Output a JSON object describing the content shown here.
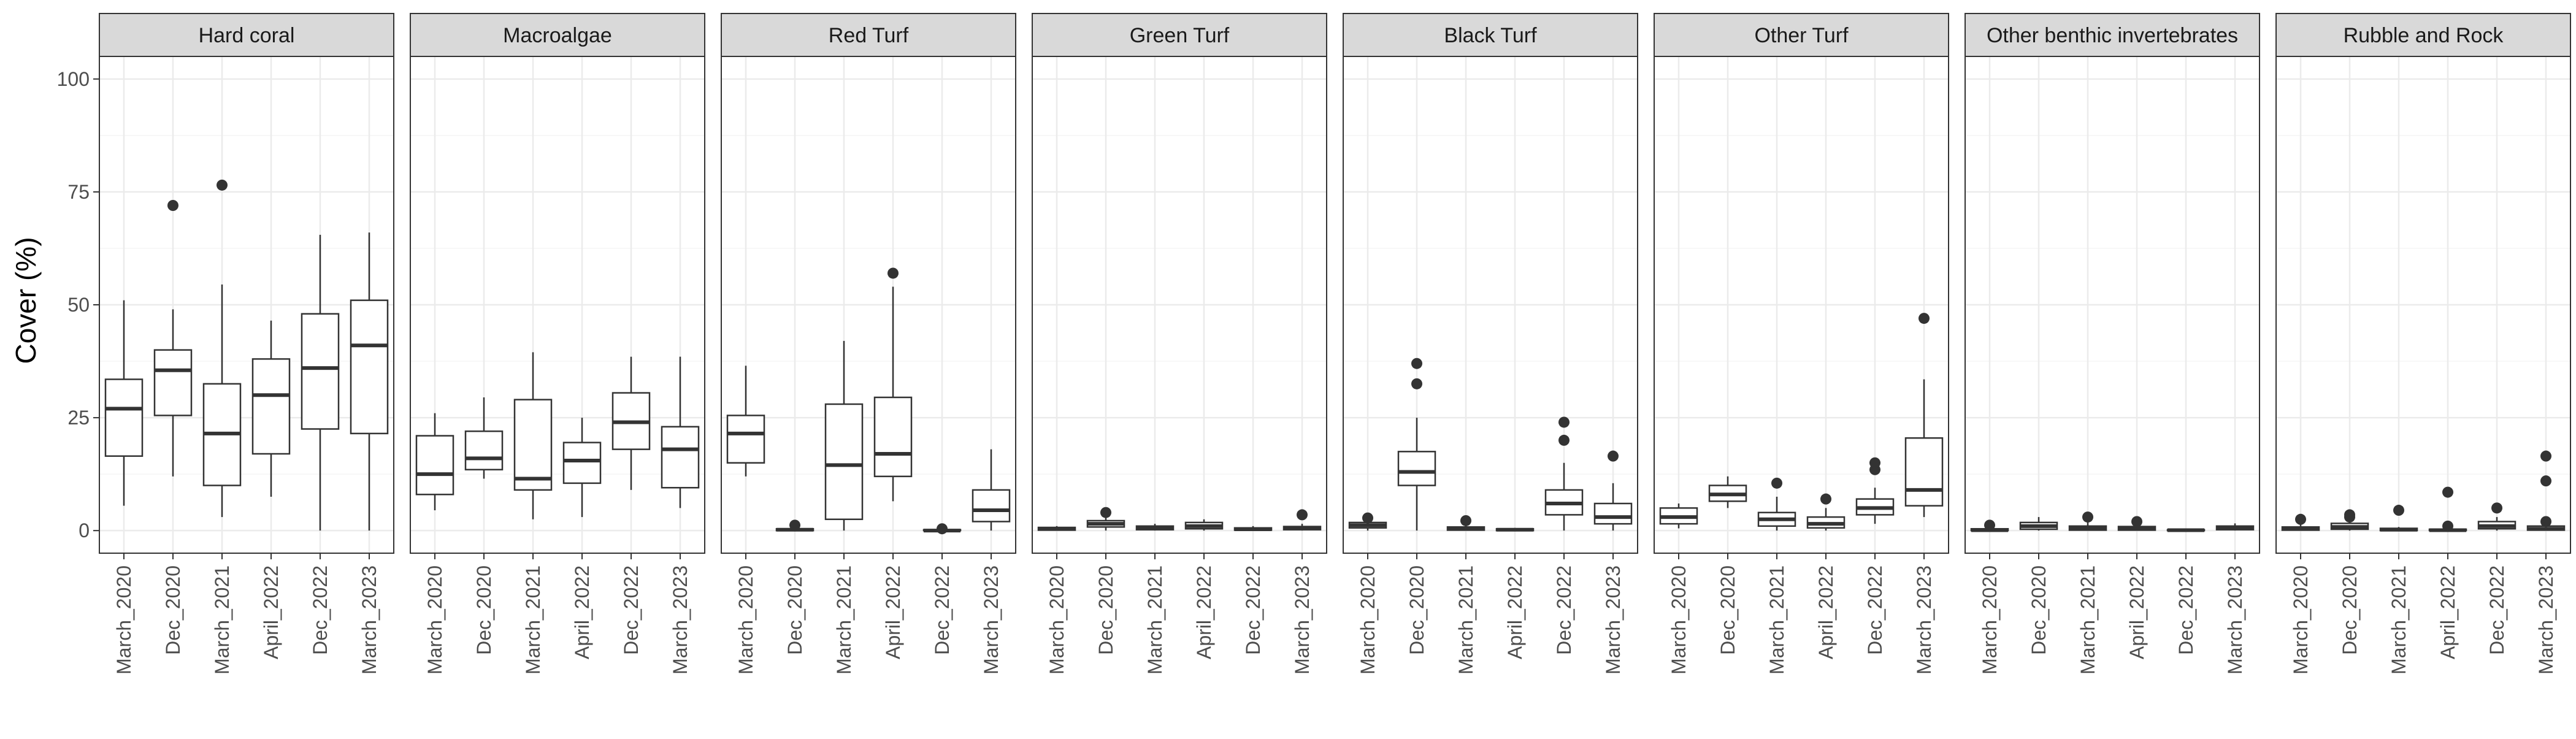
{
  "chart_data": {
    "type": "boxplot",
    "ylabel": "Cover (%)",
    "xlabel": "",
    "ylim": [
      0,
      100
    ],
    "yticks": [
      0,
      25,
      50,
      75,
      100
    ],
    "grid": true,
    "categories": [
      "March_2020",
      "Dec_2020",
      "March_2021",
      "April_2022",
      "Dec_2022",
      "March_2023"
    ],
    "colors": {
      "box_fill": "#ffffff",
      "stroke": "#333333",
      "strip_fill": "#d9d9d9",
      "grid_major": "#ebebeb",
      "grid_minor": "#f5f5f5",
      "panel_border": "#333333"
    },
    "panels": [
      {
        "title": "Hard coral",
        "boxes": [
          {
            "category": "March_2020",
            "lower": 5.5,
            "q1": 16.5,
            "median": 27,
            "q3": 33.5,
            "upper": 51,
            "outliers": []
          },
          {
            "category": "Dec_2020",
            "lower": 12,
            "q1": 25.5,
            "median": 35.5,
            "q3": 40,
            "upper": 49,
            "outliers": [
              72
            ]
          },
          {
            "category": "March_2021",
            "lower": 3,
            "q1": 10,
            "median": 21.5,
            "q3": 32.5,
            "upper": 54.5,
            "outliers": [
              76.5
            ]
          },
          {
            "category": "April_2022",
            "lower": 7.5,
            "q1": 17,
            "median": 30,
            "q3": 38,
            "upper": 46.5,
            "outliers": []
          },
          {
            "category": "Dec_2022",
            "lower": 0,
            "q1": 22.5,
            "median": 36,
            "q3": 48,
            "upper": 65.5,
            "outliers": []
          },
          {
            "category": "March_2023",
            "lower": 0,
            "q1": 21.5,
            "median": 41,
            "q3": 51,
            "upper": 66,
            "outliers": []
          }
        ]
      },
      {
        "title": "Macroalgae",
        "boxes": [
          {
            "category": "March_2020",
            "lower": 4.5,
            "q1": 8,
            "median": 12.5,
            "q3": 21,
            "upper": 26,
            "outliers": []
          },
          {
            "category": "Dec_2020",
            "lower": 11.5,
            "q1": 13.5,
            "median": 16,
            "q3": 22,
            "upper": 29.5,
            "outliers": []
          },
          {
            "category": "March_2021",
            "lower": 2.5,
            "q1": 9,
            "median": 11.5,
            "q3": 29,
            "upper": 39.5,
            "outliers": []
          },
          {
            "category": "April_2022",
            "lower": 3,
            "q1": 10.5,
            "median": 15.5,
            "q3": 19.5,
            "upper": 25,
            "outliers": []
          },
          {
            "category": "Dec_2022",
            "lower": 9,
            "q1": 18,
            "median": 24,
            "q3": 30.5,
            "upper": 38.5,
            "outliers": []
          },
          {
            "category": "March_2023",
            "lower": 5,
            "q1": 9.5,
            "median": 18,
            "q3": 23,
            "upper": 38.5,
            "outliers": []
          }
        ]
      },
      {
        "title": "Red Turf",
        "boxes": [
          {
            "category": "March_2020",
            "lower": 12,
            "q1": 15,
            "median": 21.5,
            "q3": 25.5,
            "upper": 36.5,
            "outliers": []
          },
          {
            "category": "Dec_2020",
            "lower": 0,
            "q1": 0,
            "median": 0.2,
            "q3": 0.4,
            "upper": 0.6,
            "outliers": [
              1.2
            ]
          },
          {
            "category": "March_2021",
            "lower": 0,
            "q1": 2.5,
            "median": 14.5,
            "q3": 28,
            "upper": 42,
            "outliers": []
          },
          {
            "category": "April_2022",
            "lower": 6.5,
            "q1": 12,
            "median": 17,
            "q3": 29.5,
            "upper": 54,
            "outliers": [
              57
            ]
          },
          {
            "category": "Dec_2022",
            "lower": 0,
            "q1": 0,
            "median": 0,
            "q3": 0.2,
            "upper": 0.4,
            "outliers": [
              0.4
            ]
          },
          {
            "category": "March_2023",
            "lower": 0,
            "q1": 2,
            "median": 4.5,
            "q3": 9,
            "upper": 18,
            "outliers": []
          }
        ]
      },
      {
        "title": "Green Turf",
        "boxes": [
          {
            "category": "March_2020",
            "lower": 0,
            "q1": 0.1,
            "median": 0.4,
            "q3": 0.7,
            "upper": 1,
            "outliers": []
          },
          {
            "category": "Dec_2020",
            "lower": 0,
            "q1": 0.8,
            "median": 1.5,
            "q3": 2.2,
            "upper": 3,
            "outliers": [
              4
            ]
          },
          {
            "category": "March_2021",
            "lower": 0,
            "q1": 0.2,
            "median": 0.6,
            "q3": 1,
            "upper": 1.5,
            "outliers": []
          },
          {
            "category": "April_2022",
            "lower": 0,
            "q1": 0.4,
            "median": 1,
            "q3": 1.8,
            "upper": 2.5,
            "outliers": []
          },
          {
            "category": "Dec_2022",
            "lower": 0,
            "q1": 0.1,
            "median": 0.3,
            "q3": 0.6,
            "upper": 1,
            "outliers": []
          },
          {
            "category": "March_2023",
            "lower": 0,
            "q1": 0.2,
            "median": 0.5,
            "q3": 0.9,
            "upper": 1.5,
            "outliers": [
              3.5
            ]
          }
        ]
      },
      {
        "title": "Black Turf",
        "boxes": [
          {
            "category": "March_2020",
            "lower": 0,
            "q1": 0.6,
            "median": 1.2,
            "q3": 1.8,
            "upper": 2.5,
            "outliers": [
              2.8
            ]
          },
          {
            "category": "Dec_2020",
            "lower": 0,
            "q1": 10,
            "median": 13,
            "q3": 17.5,
            "upper": 25,
            "outliers": [
              32.5,
              37
            ]
          },
          {
            "category": "March_2021",
            "lower": 0,
            "q1": 0.1,
            "median": 0.4,
            "q3": 0.8,
            "upper": 1.2,
            "outliers": [
              2.2
            ]
          },
          {
            "category": "April_2022",
            "lower": 0,
            "q1": 0,
            "median": 0.2,
            "q3": 0.4,
            "upper": 0.6,
            "outliers": []
          },
          {
            "category": "Dec_2022",
            "lower": 0,
            "q1": 3.5,
            "median": 6,
            "q3": 9,
            "upper": 15,
            "outliers": [
              20,
              24
            ]
          },
          {
            "category": "March_2023",
            "lower": 0,
            "q1": 1.5,
            "median": 3,
            "q3": 6,
            "upper": 10.5,
            "outliers": [
              16.5
            ]
          }
        ]
      },
      {
        "title": "Other Turf",
        "boxes": [
          {
            "category": "March_2020",
            "lower": 0.5,
            "q1": 1.5,
            "median": 3,
            "q3": 5,
            "upper": 6,
            "outliers": []
          },
          {
            "category": "Dec_2020",
            "lower": 5,
            "q1": 6.5,
            "median": 8,
            "q3": 10,
            "upper": 12,
            "outliers": []
          },
          {
            "category": "March_2021",
            "lower": 0,
            "q1": 1,
            "median": 2.5,
            "q3": 4,
            "upper": 7.5,
            "outliers": [
              10.5
            ]
          },
          {
            "category": "April_2022",
            "lower": 0,
            "q1": 0.6,
            "median": 1.5,
            "q3": 3,
            "upper": 5,
            "outliers": [
              7
            ]
          },
          {
            "category": "Dec_2022",
            "lower": 1.5,
            "q1": 3.5,
            "median": 5,
            "q3": 7,
            "upper": 9.5,
            "outliers": [
              13.5,
              15
            ]
          },
          {
            "category": "March_2023",
            "lower": 3,
            "q1": 5.5,
            "median": 9,
            "q3": 20.5,
            "upper": 33.5,
            "outliers": [
              47
            ]
          }
        ]
      },
      {
        "title": "Other benthic invertebrates",
        "boxes": [
          {
            "category": "March_2020",
            "lower": 0,
            "q1": 0,
            "median": 0.1,
            "q3": 0.4,
            "upper": 0.8,
            "outliers": [
              1.2
            ]
          },
          {
            "category": "Dec_2020",
            "lower": 0,
            "q1": 0.3,
            "median": 1,
            "q3": 1.8,
            "upper": 3,
            "outliers": []
          },
          {
            "category": "March_2021",
            "lower": 0,
            "q1": 0.1,
            "median": 0.5,
            "q3": 1,
            "upper": 2,
            "outliers": [
              3
            ]
          },
          {
            "category": "April_2022",
            "lower": 0,
            "q1": 0.1,
            "median": 0.4,
            "q3": 0.9,
            "upper": 1.5,
            "outliers": [
              2
            ]
          },
          {
            "category": "Dec_2022",
            "lower": 0,
            "q1": 0,
            "median": 0.1,
            "q3": 0.2,
            "upper": 0.4,
            "outliers": []
          },
          {
            "category": "March_2023",
            "lower": 0,
            "q1": 0.2,
            "median": 0.6,
            "q3": 1,
            "upper": 1.6,
            "outliers": []
          }
        ]
      },
      {
        "title": "Rubble and Rock",
        "boxes": [
          {
            "category": "March_2020",
            "lower": 0,
            "q1": 0.1,
            "median": 0.4,
            "q3": 0.8,
            "upper": 1.5,
            "outliers": [
              2.5
            ]
          },
          {
            "category": "Dec_2020",
            "lower": 0,
            "q1": 0.3,
            "median": 0.8,
            "q3": 1.6,
            "upper": 2.5,
            "outliers": [
              3,
              3.5
            ]
          },
          {
            "category": "March_2021",
            "lower": 0,
            "q1": 0,
            "median": 0.2,
            "q3": 0.5,
            "upper": 0.8,
            "outliers": [
              4.5
            ]
          },
          {
            "category": "April_2022",
            "lower": 0,
            "q1": 0,
            "median": 0.1,
            "q3": 0.3,
            "upper": 0.5,
            "outliers": [
              1,
              8.5
            ]
          },
          {
            "category": "Dec_2022",
            "lower": 0,
            "q1": 0.4,
            "median": 1,
            "q3": 2,
            "upper": 3,
            "outliers": [
              5
            ]
          },
          {
            "category": "March_2023",
            "lower": 0,
            "q1": 0.1,
            "median": 0.4,
            "q3": 1,
            "upper": 1.5,
            "outliers": [
              2,
              11,
              16.5
            ]
          }
        ]
      }
    ]
  }
}
